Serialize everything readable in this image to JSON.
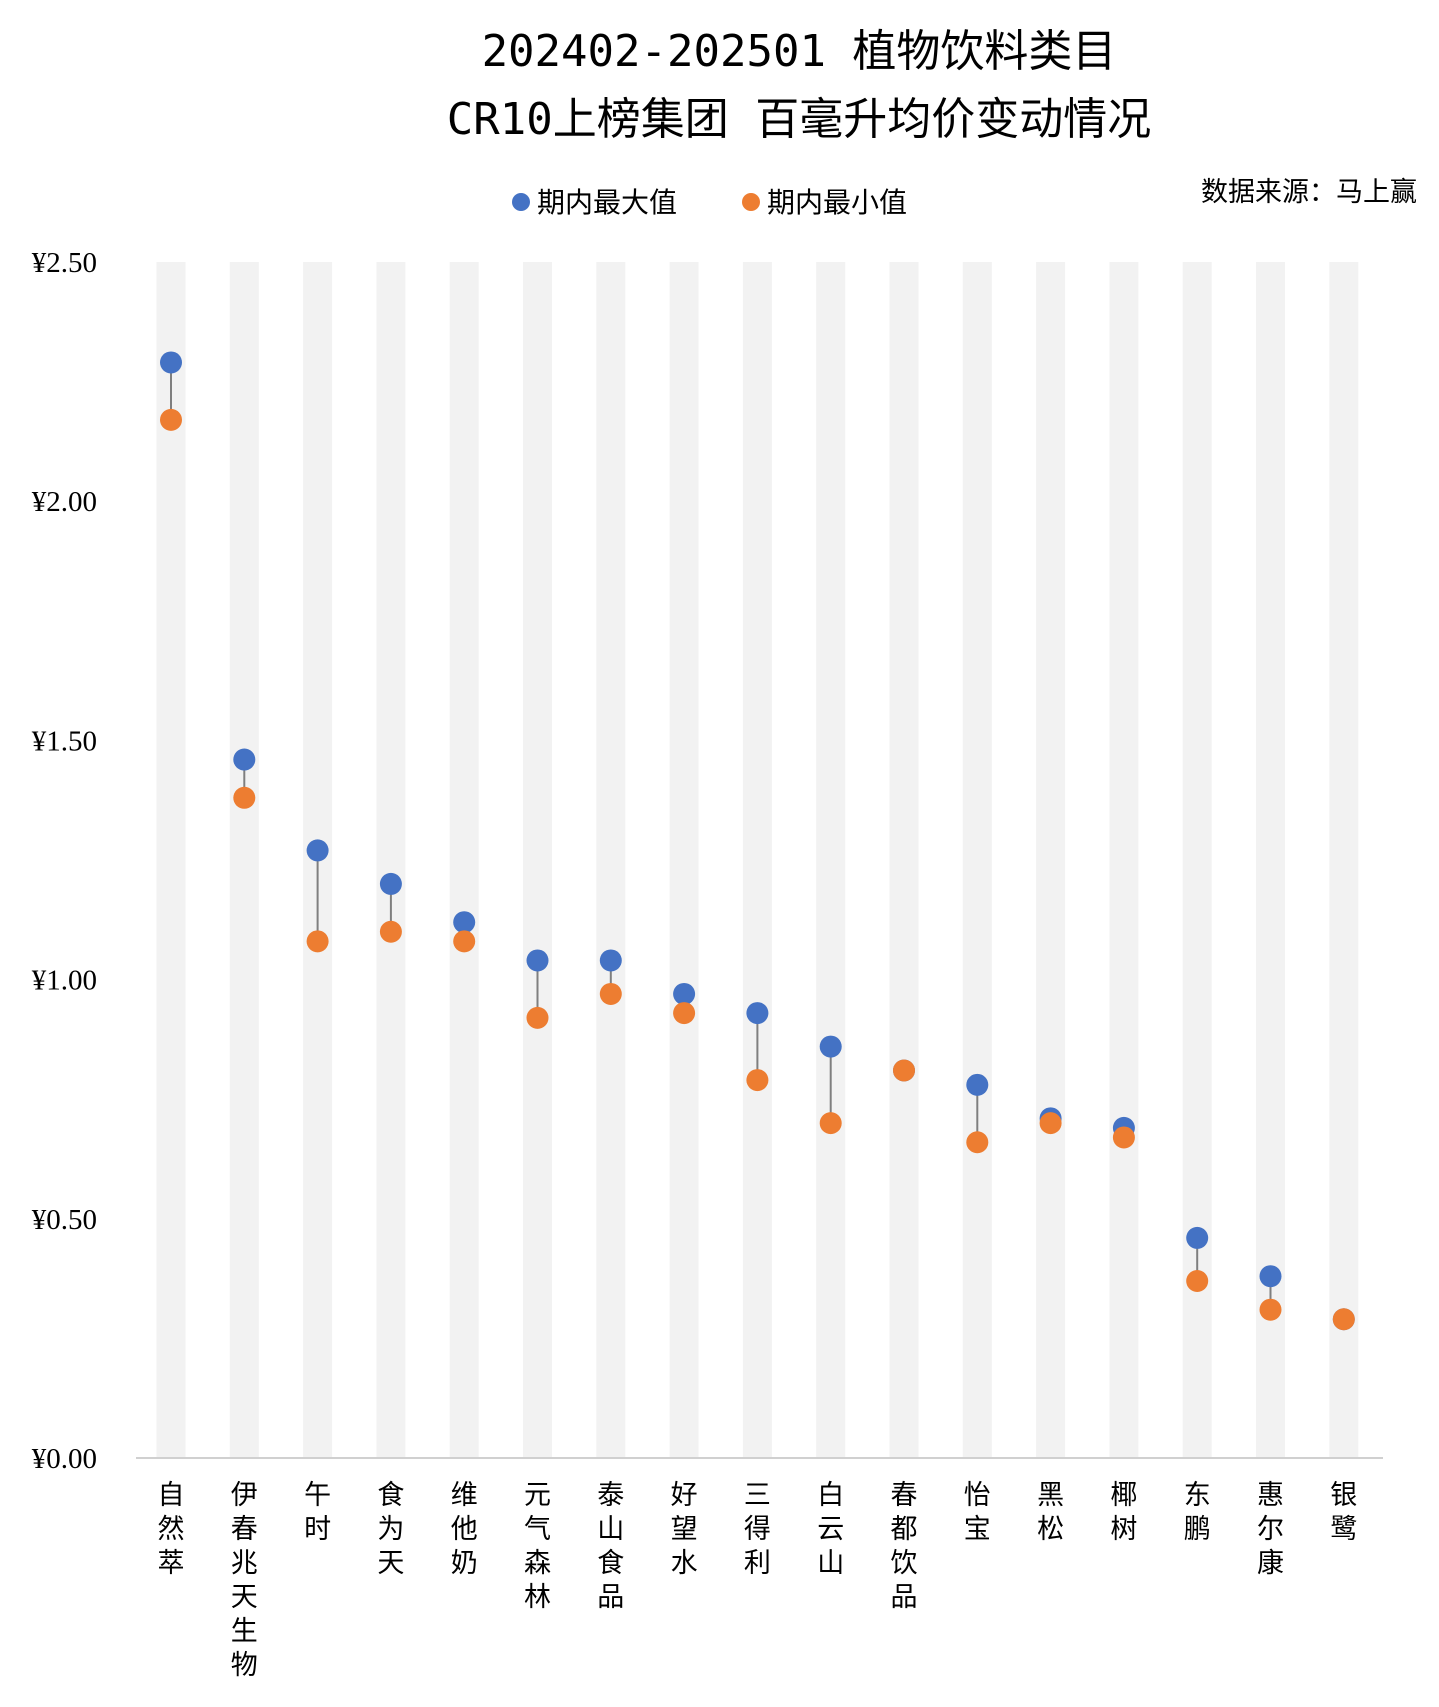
{
  "chart_data": {
    "type": "scatter",
    "title_lines": [
      "202402-202501 植物饮料类目",
      "CR10上榜集团 百毫升均价变动情况"
    ],
    "source": "数据来源：马上赢",
    "legend_position": "top-center",
    "colors": {
      "max": "#4472C4",
      "min": "#ED7D31",
      "band": "#F2F2F2",
      "connector": "#7F7F7F",
      "axis": "#D0D0D0"
    },
    "yticks": [
      "¥2.50",
      "¥2.00",
      "¥1.50",
      "¥1.00",
      "¥0.50",
      "¥0.00"
    ],
    "ylim": [
      0,
      2.5
    ],
    "categories": [
      "自然萃",
      "伊春兆天生物",
      "午时",
      "食为天",
      "维他奶",
      "元气森林",
      "泰山食品",
      "好望水",
      "三得利",
      "白云山",
      "春都饮品",
      "怡宝",
      "黑松",
      "椰树",
      "东鹏",
      "惠尔康",
      "银鹭"
    ],
    "series": [
      {
        "name": "期内最大值",
        "values": [
          2.29,
          1.46,
          1.27,
          1.2,
          1.12,
          1.04,
          1.04,
          0.97,
          0.93,
          0.86,
          0.81,
          0.78,
          0.71,
          0.69,
          0.46,
          0.38,
          0.29
        ]
      },
      {
        "name": "期内最小值",
        "values": [
          2.17,
          1.38,
          1.08,
          1.1,
          1.08,
          0.92,
          0.97,
          0.93,
          0.79,
          0.7,
          0.81,
          0.66,
          0.7,
          0.67,
          0.37,
          0.31,
          0.29
        ]
      }
    ]
  }
}
